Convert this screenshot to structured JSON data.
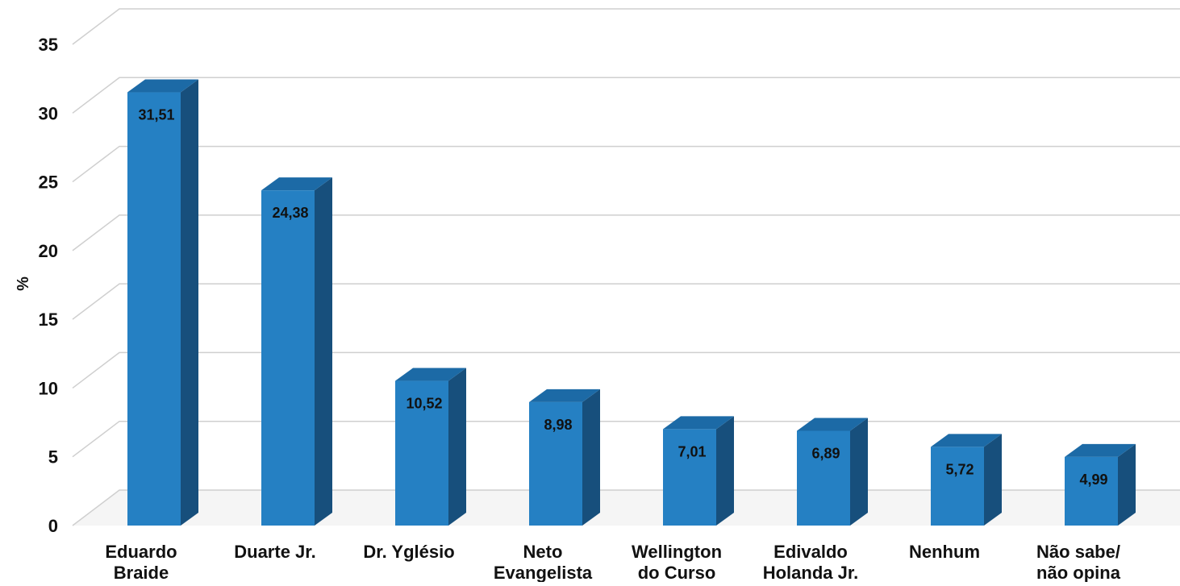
{
  "chart_data": {
    "type": "bar",
    "title": "",
    "xlabel": "",
    "ylabel": "%",
    "ylim": [
      0,
      35
    ],
    "yticks": [
      "0",
      "5",
      "10",
      "15",
      "20",
      "25",
      "30",
      "35"
    ],
    "grid": true,
    "three_d": true,
    "categories": [
      [
        "Eduardo",
        "Braide"
      ],
      [
        "Duarte Jr."
      ],
      [
        "Dr. Yglésio"
      ],
      [
        "Neto",
        "Evangelista"
      ],
      [
        "Wellington",
        "do Curso"
      ],
      [
        "Edivaldo",
        "Holanda Jr."
      ],
      [
        "Nenhum"
      ],
      [
        "Não sabe/",
        "não opina"
      ]
    ],
    "values": [
      31.51,
      24.38,
      10.52,
      8.98,
      7.01,
      6.89,
      5.72,
      4.99
    ],
    "data_labels": [
      "31,51",
      "24,38",
      "10,52",
      "8,98",
      "7,01",
      "6,89",
      "5,72",
      "4,99"
    ],
    "colors": {
      "bar_front": "#2580c3",
      "bar_side": "#174f7c",
      "bar_top": "#1c6aa6",
      "grid": "#cfcfcf",
      "floor": "#ececec"
    }
  }
}
